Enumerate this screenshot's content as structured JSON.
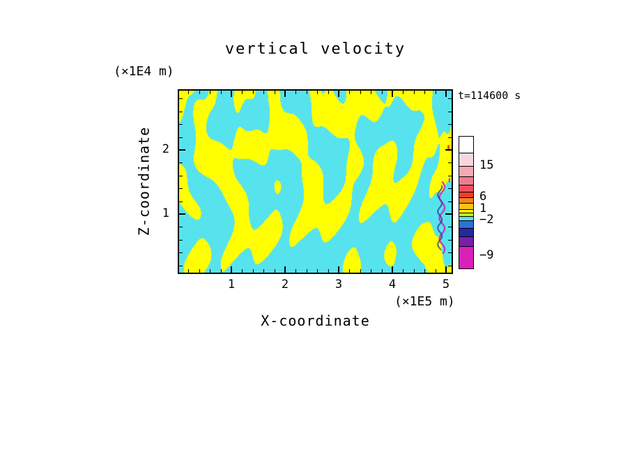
{
  "chart_data": {
    "type": "heatmap",
    "subtype": "filled-contour",
    "title": "vertical velocity",
    "timestamp": "t=114600 s",
    "xlabel": "X-coordinate",
    "ylabel": "Z-coordinate",
    "x_unit": "(×1E5 m)",
    "y_unit": "(×1E4 m)",
    "x_ticks": [
      1,
      2,
      3,
      4,
      5
    ],
    "y_ticks": [
      1,
      2
    ],
    "x_minor_step": 0.2,
    "y_minor_step": 0.2,
    "x_range": [
      0,
      5.1
    ],
    "y_range": [
      0,
      2.9
    ],
    "grid": false,
    "legend_position": "right-colorbar",
    "field": {
      "kind": "two-tone contour fill",
      "dominant_bands": [
        {
          "name": "cyan",
          "range": "-2 to 1",
          "color": "#57e3ed"
        },
        {
          "name": "yellow",
          "range": "1 to 6",
          "color": "#ffff00"
        }
      ],
      "extreme_feature": {
        "desc": "narrow magenta/blue streak of strongly negative values near right edge",
        "color": "#cf1fb8",
        "companion_color": "#2b2d9c",
        "speck_color": "#e8402a"
      },
      "threshold": 0.14
    },
    "colorbar": {
      "levels": [
        15,
        6,
        1,
        -2,
        -9
      ],
      "segments": [
        {
          "color": "#ffffff",
          "h": 24
        },
        {
          "color": "#f9d6dc",
          "h": 19
        },
        {
          "color": "#f3a9b6",
          "h": 15
        },
        {
          "color": "#ee7d90",
          "h": 12
        },
        {
          "color": "#e9525f",
          "h": 10
        },
        {
          "color": "#ee3d2c",
          "h": 8
        },
        {
          "color": "#f5821f",
          "h": 8
        },
        {
          "color": "#fcc211",
          "h": 9
        },
        {
          "color": "#ffff00",
          "h": 5
        },
        {
          "color": "#c8ee2e",
          "h": 5
        },
        {
          "color": "#57e3ed",
          "h": 6
        },
        {
          "color": "#2f6fd8",
          "h": 11
        },
        {
          "color": "#232a9e",
          "h": 12
        },
        {
          "color": "#7a1fa8",
          "h": 14
        },
        {
          "color": "#d920b8",
          "h": 32
        }
      ],
      "labels": [
        {
          "text": "15",
          "y": 43
        },
        {
          "text": "6",
          "y": 88
        },
        {
          "text": "1",
          "y": 105
        },
        {
          "text": "−2",
          "y": 121
        },
        {
          "text": "−9",
          "y": 172
        }
      ]
    }
  },
  "layout_colors": {
    "background": "#ffffff",
    "frame": "#000000",
    "text": "#000000"
  }
}
